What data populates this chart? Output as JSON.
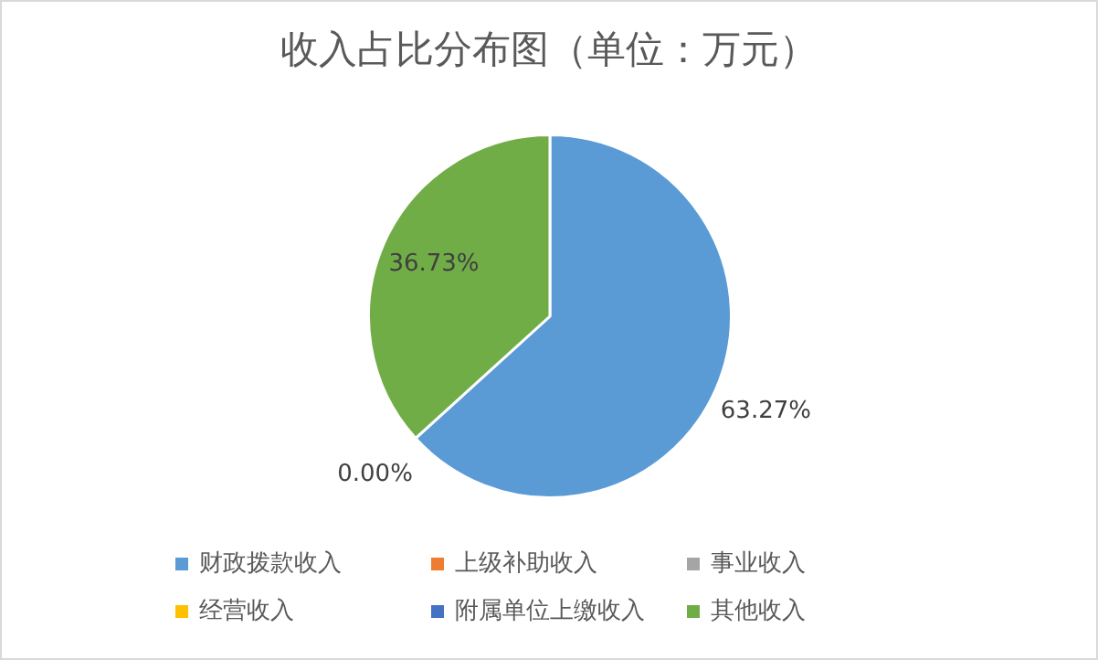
{
  "chart_data": {
    "type": "pie",
    "title": "收入占比分布图（单位：万元）",
    "categories": [
      "财政拨款收入",
      "上级补助收入",
      "事业收入",
      "经营收入",
      "附属单位上缴收入",
      "其他收入"
    ],
    "values": [
      63.27,
      0,
      0,
      0,
      0,
      36.73
    ],
    "colors": [
      "#5b9bd5",
      "#ed7d31",
      "#a5a5a5",
      "#ffc000",
      "#4472c4",
      "#70ad47"
    ],
    "value_labels": [
      "63.27%",
      "0.00%",
      null,
      null,
      null,
      "36.73%"
    ],
    "legend": "bottom"
  }
}
